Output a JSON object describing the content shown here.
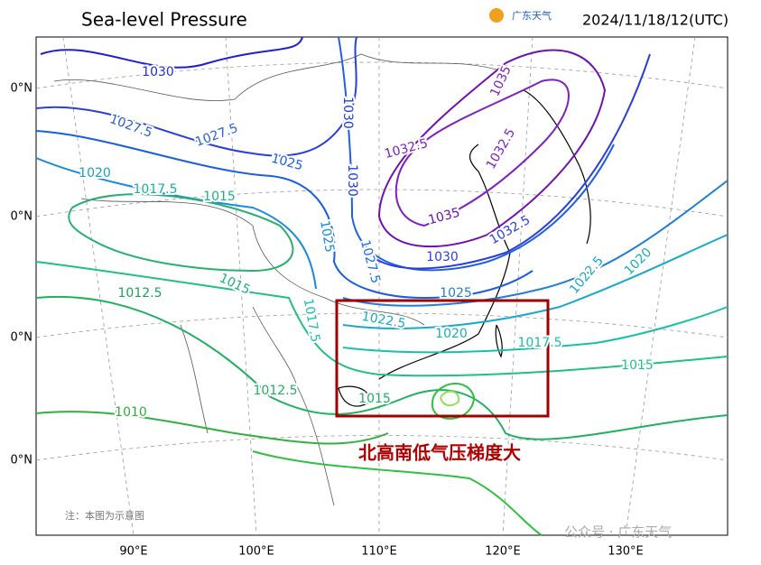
{
  "header": {
    "title": "Sea-level Pressure",
    "logo": "广东天气",
    "datetime": "2024/11/18/12(UTC)"
  },
  "map": {
    "lon_labels": [
      "90°E",
      "100°E",
      "110°E",
      "120°E",
      "130°E"
    ],
    "lat_labels": [
      "0°N",
      "0°N",
      "0°N",
      "0°N"
    ],
    "contour_labels": [
      "1030",
      "1027.5",
      "1027.5",
      "1025",
      "1030",
      "1030",
      "1020",
      "1017.5",
      "1015",
      "1025",
      "1027.5",
      "1032.5",
      "1035",
      "1032.5",
      "1035",
      "1032.5",
      "1030",
      "1025",
      "1022.5",
      "1020",
      "1015",
      "1012.5",
      "1017.5",
      "1022.5",
      "1020",
      "1017.5",
      "1015",
      "1012.5",
      "1015",
      "1010"
    ],
    "annotation": "北高南低气压梯度大",
    "note": "注：本图为示意图",
    "watermark": "公众号 · 广东天气"
  }
}
